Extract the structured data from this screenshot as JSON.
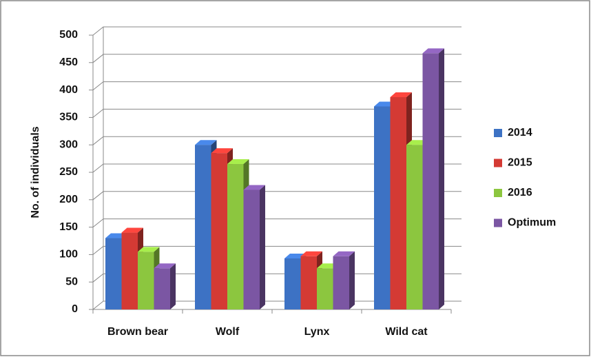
{
  "chart_data": {
    "type": "bar3d",
    "y_label": "No. of individuals",
    "categories": [
      "Brown bear",
      "Wolf",
      "Lynx",
      "Wild cat"
    ],
    "series": [
      {
        "name": "2014",
        "color": "#3d72c4",
        "values": [
          130,
          300,
          93,
          370
        ]
      },
      {
        "name": "2015",
        "color": "#d43a34",
        "values": [
          140,
          285,
          97,
          387
        ]
      },
      {
        "name": "2016",
        "color": "#8cc63f",
        "values": [
          105,
          265,
          75,
          300
        ]
      },
      {
        "name": "Optimum",
        "color": "#7b56a3",
        "values": [
          75,
          218,
          97,
          467
        ]
      }
    ],
    "ylim": [
      0,
      500
    ],
    "yticks": [
      0,
      50,
      100,
      150,
      200,
      250,
      300,
      350,
      400,
      450,
      500
    ],
    "grid": true,
    "legend": "right"
  }
}
